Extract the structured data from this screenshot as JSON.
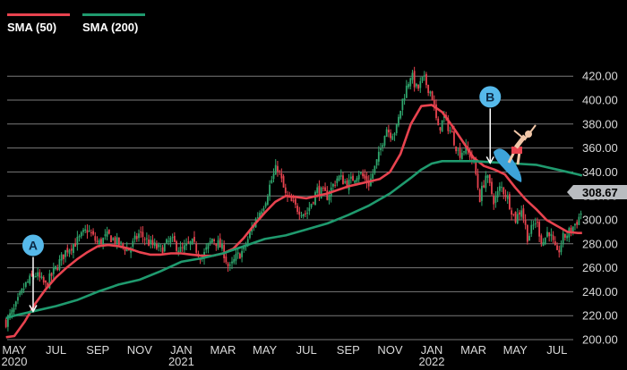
{
  "colors": {
    "background": "#000000",
    "sma50": "#e8434f",
    "sma200": "#1f9a6e",
    "candle_up": "#2fa66d",
    "candle_down": "#e8434f",
    "annotation": "#56b9ea",
    "last_badge": "#b9bcc0"
  },
  "legend": [
    {
      "label": "SMA (50)",
      "color": "#e8434f"
    },
    {
      "label": "SMA (200)",
      "color": "#1f9a6e"
    }
  ],
  "last_price": "308.67",
  "surfer": {
    "icon": "surfer-icon"
  },
  "chart_data": {
    "type": "line",
    "xlabel": "",
    "ylabel": "",
    "ylim": [
      195,
      425
    ],
    "xlim": [
      0,
      27.5
    ],
    "grid": true,
    "legend_placement": "top-left",
    "y_ticks": [
      "200.00",
      "220.00",
      "240.00",
      "260.00",
      "280.00",
      "300.00",
      "320.00",
      "340.00",
      "360.00",
      "380.00",
      "400.00",
      "420.00"
    ],
    "y_tick_values": [
      200,
      220,
      240,
      260,
      280,
      300,
      320,
      340,
      360,
      380,
      400,
      420
    ],
    "x_ticks": [
      {
        "label": "MAY",
        "year": "2020",
        "x": 0
      },
      {
        "label": "JUL",
        "year": "",
        "x": 2
      },
      {
        "label": "SEP",
        "year": "",
        "x": 4
      },
      {
        "label": "NOV",
        "year": "",
        "x": 6
      },
      {
        "label": "JAN",
        "year": "2021",
        "x": 8
      },
      {
        "label": "MAR",
        "year": "",
        "x": 10
      },
      {
        "label": "MAY",
        "year": "",
        "x": 12
      },
      {
        "label": "JUL",
        "year": "",
        "x": 14
      },
      {
        "label": "SEP",
        "year": "",
        "x": 16
      },
      {
        "label": "NOV",
        "year": "",
        "x": 18
      },
      {
        "label": "JAN",
        "year": "2022",
        "x": 20
      },
      {
        "label": "MAR",
        "year": "",
        "x": 22
      },
      {
        "label": "MAY",
        "year": "",
        "x": 24
      },
      {
        "label": "JUL",
        "year": "",
        "x": 26
      }
    ],
    "price": {
      "x": [
        -0.4,
        0,
        0.5,
        1,
        1.5,
        2,
        2.5,
        3,
        3.5,
        4,
        4.5,
        5,
        5.5,
        6,
        6.5,
        7,
        7.5,
        8,
        8.5,
        9,
        9.5,
        10,
        10.3,
        10.6,
        11,
        11.5,
        12,
        12.3,
        12.6,
        13,
        13.5,
        14,
        14.5,
        15,
        15.5,
        16,
        16.5,
        17,
        17.5,
        17.8,
        18,
        18.3,
        18.6,
        19,
        19.3,
        19.6,
        20,
        20.3,
        20.6,
        21,
        21.3,
        21.6,
        22,
        22.3,
        22.6,
        23,
        23.3,
        23.6,
        24,
        24.3,
        24.6,
        25,
        25.3,
        25.6,
        26,
        26.3,
        26.6,
        27,
        27.2
      ],
      "y": [
        215,
        225,
        245,
        255,
        245,
        260,
        275,
        282,
        292,
        280,
        287,
        280,
        275,
        289,
        280,
        275,
        283,
        274,
        281,
        268,
        285,
        275,
        258,
        268,
        275,
        298,
        315,
        332,
        345,
        320,
        310,
        305,
        325,
        320,
        336,
        330,
        340,
        330,
        355,
        378,
        372,
        375,
        400,
        422,
        408,
        418,
        405,
        375,
        385,
        370,
        355,
        360,
        350,
        318,
        338,
        315,
        328,
        320,
        300,
        310,
        285,
        300,
        280,
        292,
        270,
        285,
        290,
        300,
        308
      ]
    },
    "series": [
      {
        "name": "SMA (50)",
        "x": [
          -0.4,
          0,
          0.5,
          1,
          1.5,
          2,
          2.5,
          3,
          3.5,
          4,
          4.5,
          5,
          5.5,
          6,
          6.5,
          7,
          7.5,
          8,
          8.5,
          9,
          9.5,
          10,
          10.5,
          11,
          11.5,
          12,
          12.5,
          13,
          13.5,
          14,
          14.5,
          15,
          15.5,
          16,
          16.5,
          17,
          17.5,
          18,
          18.5,
          19,
          19.5,
          20,
          20.5,
          21,
          21.5,
          22,
          22.5,
          23,
          23.5,
          24,
          24.5,
          25,
          25.5,
          26,
          26.5,
          27,
          27.2
        ],
        "y": [
          202,
          203,
          215,
          230,
          242,
          252,
          260,
          267,
          273,
          278,
          279,
          278,
          276,
          273,
          271,
          271,
          272,
          272,
          271,
          270,
          270,
          272,
          276,
          285,
          296,
          306,
          315,
          320,
          319,
          318,
          320,
          322,
          325,
          328,
          330,
          332,
          334,
          340,
          355,
          380,
          395,
          396,
          390,
          378,
          365,
          352,
          345,
          342,
          338,
          327,
          317,
          309,
          300,
          295,
          290,
          289,
          289
        ]
      },
      {
        "name": "SMA (200)",
        "x": [
          -0.4,
          0,
          1,
          2,
          3,
          4,
          5,
          6,
          7,
          8,
          9,
          10,
          11,
          12,
          13,
          14,
          15,
          16,
          17,
          18,
          19,
          19.5,
          20,
          20.5,
          21,
          21.5,
          22,
          23,
          24,
          25,
          26,
          27,
          27.2
        ],
        "y": [
          218,
          220,
          224,
          228,
          233,
          240,
          246,
          250,
          257,
          265,
          268,
          272,
          278,
          284,
          287,
          292,
          297,
          304,
          312,
          322,
          335,
          342,
          347,
          349,
          349,
          349,
          349,
          348,
          347,
          346,
          342,
          338,
          337
        ]
      }
    ],
    "annotations": [
      {
        "label": "A",
        "x": 0.9,
        "y": 222
      },
      {
        "label": "B",
        "x": 22.8,
        "y": 346
      }
    ]
  }
}
